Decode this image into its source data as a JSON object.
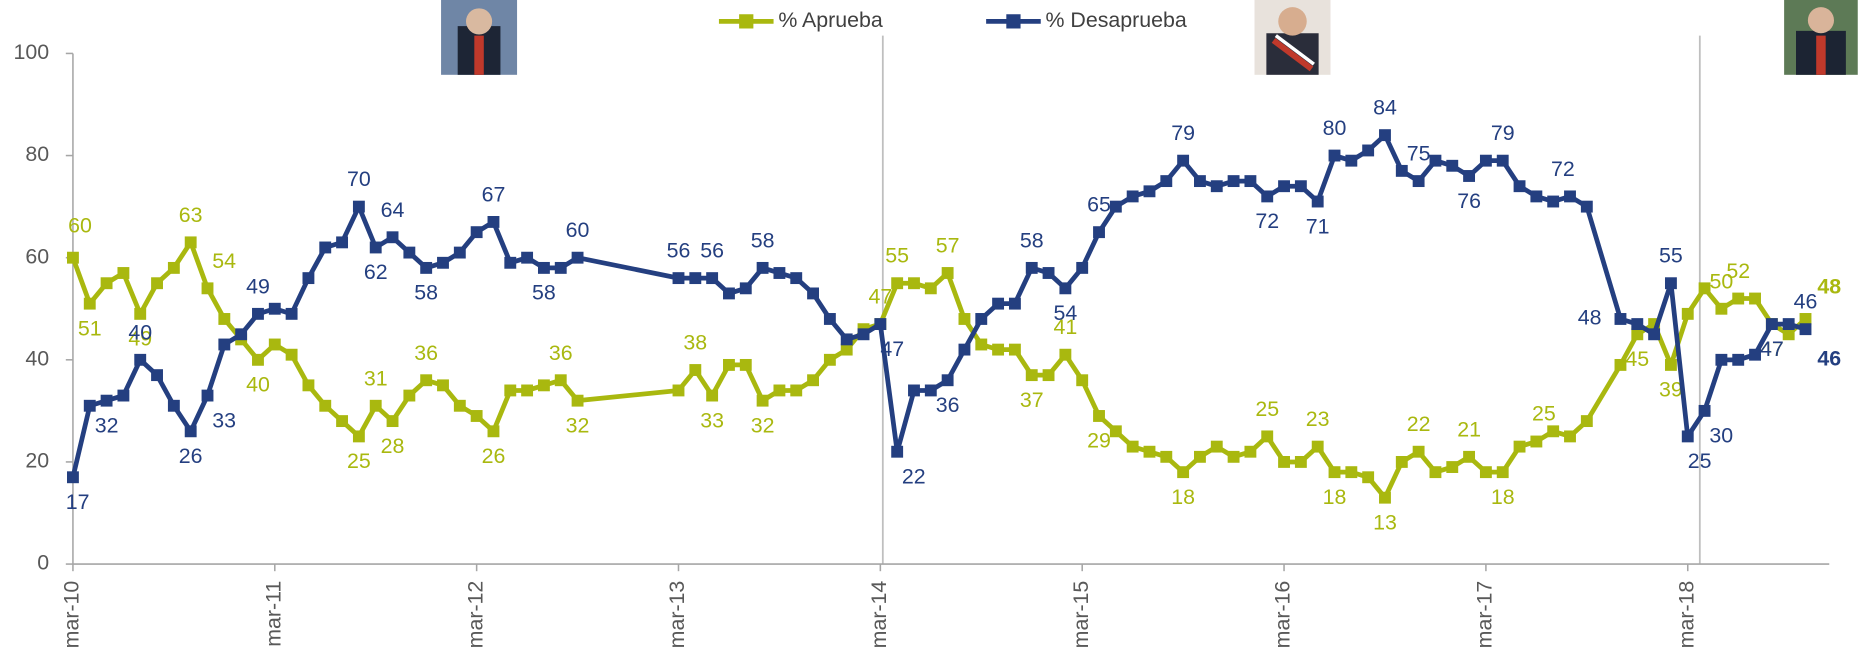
{
  "chart_data": {
    "type": "line",
    "x": [
      "2010-03",
      "2010-04",
      "2010-05",
      "2010-06",
      "2010-07",
      "2010-08",
      "2010-09",
      "2010-10",
      "2010-11",
      "2010-12",
      "2011-01",
      "2011-02",
      "2011-03",
      "2011-04",
      "2011-05",
      "2011-06",
      "2011-07",
      "2011-08",
      "2011-09",
      "2011-10",
      "2011-11",
      "2011-12",
      "2012-01",
      "2012-02",
      "2012-03",
      "2012-04",
      "2012-05",
      "2012-06",
      "2012-07",
      "2012-08",
      "2012-09",
      "2013-03",
      "2013-04",
      "2013-05",
      "2013-06",
      "2013-07",
      "2013-08",
      "2013-09",
      "2013-10",
      "2013-11",
      "2013-12",
      "2014-01",
      "2014-02",
      "2014-03",
      "2014-04",
      "2014-05",
      "2014-06",
      "2014-07",
      "2014-08",
      "2014-09",
      "2014-10",
      "2014-11",
      "2014-12",
      "2015-01",
      "2015-02",
      "2015-03",
      "2015-04",
      "2015-05",
      "2015-06",
      "2015-07",
      "2015-08",
      "2015-09",
      "2015-10",
      "2015-11",
      "2015-12",
      "2016-01",
      "2016-02",
      "2016-03",
      "2016-04",
      "2016-05",
      "2016-06",
      "2016-07",
      "2016-08",
      "2016-09",
      "2016-10",
      "2016-11",
      "2016-12",
      "2017-01",
      "2017-02",
      "2017-03",
      "2017-04",
      "2017-05",
      "2017-06",
      "2017-07",
      "2017-08",
      "2017-09",
      "2017-11",
      "2017-12",
      "2018-01",
      "2018-02",
      "2018-03",
      "2018-04",
      "2018-05",
      "2018-06",
      "2018-07",
      "2018-08",
      "2018-09",
      "2018-10"
    ],
    "series": [
      {
        "name": "% Aprueba",
        "color": "#a9b80f",
        "values": [
          60,
          51,
          55,
          57,
          49,
          55,
          58,
          63,
          54,
          48,
          44,
          40,
          43,
          41,
          35,
          31,
          28,
          25,
          31,
          28,
          33,
          36,
          35,
          31,
          29,
          26,
          34,
          34,
          35,
          36,
          32,
          34,
          38,
          33,
          39,
          39,
          32,
          34,
          34,
          36,
          40,
          42,
          46,
          47,
          55,
          55,
          54,
          57,
          48,
          43,
          42,
          42,
          37,
          37,
          41,
          36,
          29,
          26,
          23,
          22,
          21,
          18,
          21,
          23,
          21,
          22,
          25,
          20,
          20,
          23,
          18,
          18,
          17,
          13,
          20,
          22,
          18,
          19,
          21,
          18,
          18,
          23,
          24,
          26,
          25,
          28,
          39,
          45,
          47,
          39,
          49,
          54,
          50,
          52,
          52,
          47,
          45,
          48
        ]
      },
      {
        "name": "% Desaprueba",
        "color": "#243f80",
        "values": [
          17,
          31,
          32,
          33,
          40,
          37,
          31,
          26,
          33,
          43,
          45,
          49,
          50,
          49,
          56,
          62,
          63,
          70,
          62,
          64,
          61,
          58,
          59,
          61,
          65,
          67,
          59,
          60,
          58,
          58,
          60,
          56,
          56,
          56,
          53,
          54,
          58,
          57,
          56,
          53,
          48,
          44,
          45,
          47,
          22,
          34,
          34,
          36,
          42,
          48,
          51,
          51,
          58,
          57,
          54,
          58,
          65,
          70,
          72,
          73,
          75,
          79,
          75,
          74,
          75,
          75,
          72,
          74,
          74,
          71,
          80,
          79,
          81,
          84,
          77,
          75,
          79,
          78,
          76,
          79,
          79,
          74,
          72,
          71,
          72,
          70,
          48,
          47,
          45,
          55,
          25,
          30,
          40,
          40,
          41,
          47,
          47,
          46
        ]
      }
    ],
    "xlim": [
      "2010-03",
      "2018-10"
    ],
    "xticks": [
      {
        "value": "2010-03",
        "label": "mar-10"
      },
      {
        "value": "2011-03",
        "label": "mar-11"
      },
      {
        "value": "2012-03",
        "label": "mar-12"
      },
      {
        "value": "2013-03",
        "label": "mar-13"
      },
      {
        "value": "2014-03",
        "label": "mar-14"
      },
      {
        "value": "2015-03",
        "label": "mar-15"
      },
      {
        "value": "2016-03",
        "label": "mar-16"
      },
      {
        "value": "2017-03",
        "label": "mar-17"
      },
      {
        "value": "2018-03",
        "label": "mar-18"
      }
    ],
    "ylim": [
      0,
      100
    ],
    "yticks": [
      0,
      20,
      40,
      60,
      80,
      100
    ],
    "grid": false,
    "legend": "top"
  }
}
